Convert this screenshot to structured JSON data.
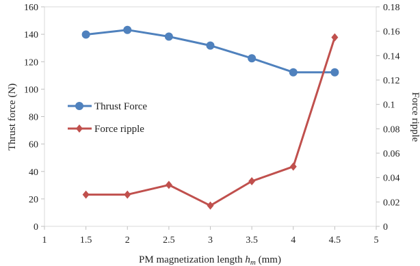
{
  "chart_data": {
    "type": "line",
    "xlabel_main": "PM magnetization  length ",
    "xlabel_var": "h",
    "xlabel_sub": "m",
    "xlabel_unit": " (mm)",
    "ylabel_left": "Thrust force (N)",
    "ylabel_right": "Force ripple",
    "xlim": [
      1,
      5
    ],
    "x_ticks": [
      1,
      1.5,
      2,
      2.5,
      3,
      3.5,
      4,
      4.5,
      5
    ],
    "x_tick_labels": [
      "1",
      "1.5",
      "2",
      "2.5",
      "3",
      "3.5",
      "4",
      "4.5",
      "5"
    ],
    "ylim_left": [
      0,
      160
    ],
    "y_ticks_left": [
      0,
      20,
      40,
      60,
      80,
      100,
      120,
      140,
      160
    ],
    "y_tick_labels_left": [
      "0",
      "20",
      "40",
      "60",
      "80",
      "100",
      "120",
      "140",
      "160"
    ],
    "ylim_right": [
      0,
      0.18
    ],
    "y_ticks_right": [
      0,
      0.02,
      0.04,
      0.06,
      0.08,
      0.1,
      0.12,
      0.14,
      0.16,
      0.18
    ],
    "y_tick_labels_right": [
      "0",
      "0.02",
      "0.04",
      "0.06",
      "0.08",
      "0.1",
      "0.12",
      "0.14",
      "0.16",
      "0.18"
    ],
    "grid": false,
    "legend_position": "center-left",
    "series": [
      {
        "name": "Thrust Force",
        "axis": "left",
        "color": "#4f81bd",
        "marker": "circle",
        "x": [
          1.5,
          2,
          2.5,
          3,
          3.5,
          4,
          4.5
        ],
        "y": [
          139.8,
          143.2,
          138.3,
          131.8,
          122.5,
          112.3,
          112.3
        ]
      },
      {
        "name": "Force ripple",
        "axis": "right",
        "color": "#c0504d",
        "marker": "diamond",
        "x": [
          1.5,
          2,
          2.5,
          3,
          3.5,
          4,
          4.5
        ],
        "y": [
          0.026,
          0.026,
          0.034,
          0.017,
          0.037,
          0.049,
          0.155
        ]
      }
    ]
  }
}
